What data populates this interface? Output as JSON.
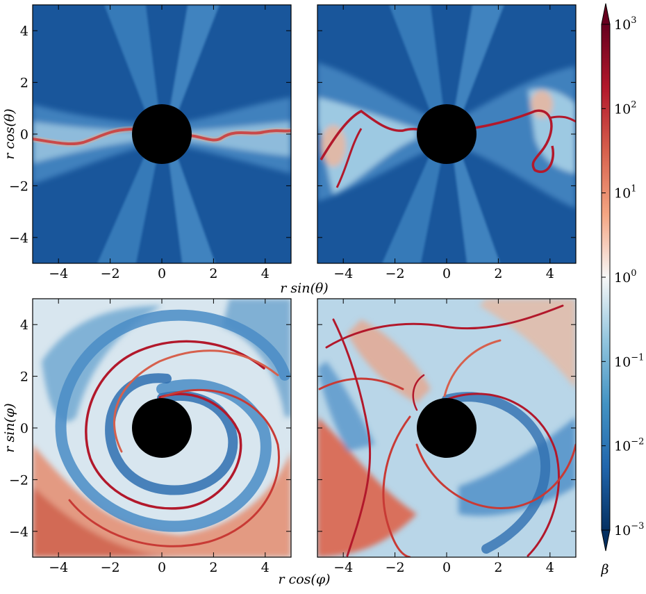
{
  "chart_data": [
    {
      "type": "heatmap",
      "panel": "top-left",
      "xlabel": "",
      "ylabel": "r cos(θ)",
      "xlim": [
        -5,
        5
      ],
      "ylim": [
        -5,
        5
      ],
      "x_ticks": [
        "−4",
        "−2",
        "0",
        "2",
        "4"
      ],
      "y_ticks": [
        "4",
        "2",
        "0",
        "−2",
        "−4"
      ]
    },
    {
      "type": "heatmap",
      "panel": "top-right",
      "xlabel": "",
      "ylabel": "",
      "xlim": [
        -5,
        5
      ],
      "ylim": [
        -5,
        5
      ],
      "x_ticks": [
        "−4",
        "−2",
        "0",
        "2",
        "4"
      ],
      "y_ticks": []
    },
    {
      "type": "heatmap",
      "panel": "bottom-left",
      "xlabel": "r cos(φ)",
      "ylabel": "r sin(φ)",
      "xlim": [
        -5,
        5
      ],
      "ylim": [
        -5,
        5
      ],
      "x_ticks": [
        "−4",
        "−2",
        "0",
        "2",
        "4"
      ],
      "y_ticks": [
        "4",
        "2",
        "0",
        "−2",
        "−4"
      ]
    },
    {
      "type": "heatmap",
      "panel": "bottom-right",
      "xlabel": "",
      "ylabel": "",
      "xlim": [
        -5,
        5
      ],
      "ylim": [
        -5,
        5
      ],
      "x_ticks": [
        "−4",
        "−2",
        "0",
        "2",
        "4"
      ],
      "y_ticks": []
    }
  ],
  "shared": {
    "top_xlabel": "r sin(θ)",
    "black_hole_radius": 1.0
  },
  "colorbar": {
    "label": "β",
    "scale": "log",
    "range": [
      0.001,
      1000
    ],
    "ticks": [
      {
        "base": "10",
        "exp": "3"
      },
      {
        "base": "10",
        "exp": "2"
      },
      {
        "base": "10",
        "exp": "1"
      },
      {
        "base": "10",
        "exp": "0"
      },
      {
        "base": "10",
        "exp": "−1"
      },
      {
        "base": "10",
        "exp": "−2"
      },
      {
        "base": "10",
        "exp": "−3"
      }
    ],
    "colormap": [
      "#053061",
      "#2166ac",
      "#4393c3",
      "#92c5de",
      "#f7f7f7",
      "#f4a582",
      "#d6604d",
      "#b2182b",
      "#67001f"
    ]
  },
  "colors": {
    "background_blue": "#19569b",
    "jet_blue": "#3f86c2",
    "disk_light": "#d7e8f2",
    "disk_red": "#c83a35",
    "disk_salmon": "#e9a48a",
    "black_hole": "#000000"
  }
}
